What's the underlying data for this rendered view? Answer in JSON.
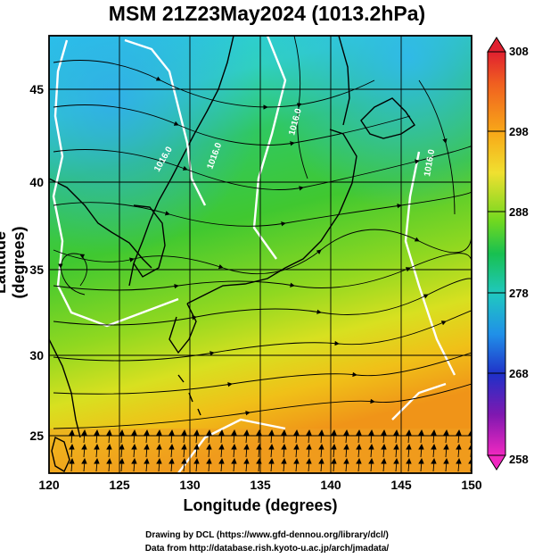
{
  "title": "MSM 21Z23May2024 (1013.2hPa)",
  "xlabel": "Longitude (degrees)",
  "ylabel": "Latitude  (degrees)",
  "xticks": [
    "120",
    "125",
    "130",
    "135",
    "140",
    "145",
    "150"
  ],
  "yticks": [
    "25",
    "30",
    "35",
    "40",
    "45"
  ],
  "colorbar": {
    "ticks": [
      "308",
      "298",
      "288",
      "278",
      "268",
      "258"
    ],
    "colors": [
      "#e0203c",
      "#f0701c",
      "#f8b818",
      "#e8e030",
      "#b8e024",
      "#58d01c",
      "#18c060",
      "#20c8b0",
      "#30a8e8",
      "#2050d8",
      "#2818b0",
      "#7818a8",
      "#c018c8",
      "#f028c8"
    ]
  },
  "contour_labels": [
    "1016.0",
    "1016.0",
    "1016.0",
    "1016.0"
  ],
  "credit_line1": "Drawing by DCL (https://www.gfd-dennou.org/library/dcl/)",
  "credit_line2": "Data from http://database.rish.kyoto-u.ac.jp/arch/jmadata/"
}
